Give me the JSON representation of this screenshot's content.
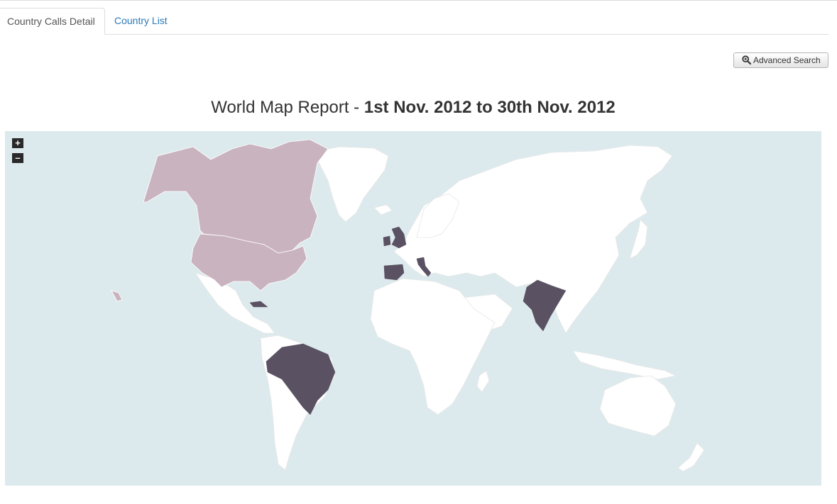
{
  "tabs": [
    {
      "label": "Country Calls Detail",
      "active": true
    },
    {
      "label": "Country List",
      "active": false
    }
  ],
  "toolbar": {
    "advanced_search_label": "Advanced Search",
    "advanced_search_icon": "zoom-in-icon"
  },
  "report": {
    "title_prefix": "World Map Report - ",
    "title_range": "1st Nov. 2012 to 30th Nov. 2012"
  },
  "map": {
    "zoom_in_label": "+",
    "zoom_out_label": "–",
    "colors": {
      "water": "#ddeaed",
      "land": "#ffffff",
      "medium": "#c9b3be",
      "high": "#5a5262"
    },
    "highlighted_countries": {
      "medium": [
        "United States",
        "Canada"
      ],
      "high": [
        "United Kingdom",
        "Ireland",
        "Spain",
        "Italy",
        "India",
        "Brazil",
        "Cuba"
      ]
    }
  }
}
